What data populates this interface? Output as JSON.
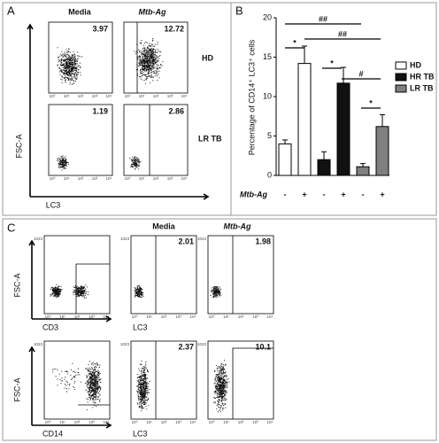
{
  "chart_data": {
    "type": "bar",
    "y_label": "Percentage of CD14⁺ LC3⁺ cells",
    "x_label": "Mtb-Ag",
    "categories": [
      "-",
      "+"
    ],
    "series": [
      {
        "name": "HD",
        "color": "#ffffff",
        "values": [
          4,
          14.2
        ],
        "errors": [
          0.5,
          2.2
        ]
      },
      {
        "name": "HR TB",
        "color": "#111111",
        "values": [
          2,
          11.7
        ],
        "errors": [
          1,
          2
        ]
      },
      {
        "name": "LR TB",
        "color": "#7f7f7f",
        "values": [
          1.1,
          6.2
        ],
        "errors": [
          0.4,
          1.5
        ]
      }
    ],
    "ylim": [
      0,
      20
    ],
    "yticks": [
      0,
      5,
      10,
      15,
      20
    ],
    "annotations": [
      "##",
      "##",
      "*",
      "*",
      "#",
      "*"
    ]
  },
  "panel_labels": [
    "A",
    "B",
    "C"
  ],
  "panel_a": {
    "columns": [
      "Media",
      "Mtb-Ag"
    ],
    "rows": [
      "HD",
      "LR TB"
    ],
    "y_axis": "FSC-A",
    "x_axis": "LC3",
    "percentages": [
      "3.97",
      "12.72",
      "1.19",
      "2.86"
    ]
  },
  "panel_c": {
    "columns": [
      "Media",
      "Mtb-Ag"
    ],
    "y_axis": "FSC-A",
    "x_axes": [
      "CD3",
      "LC3",
      "CD14",
      "LC3"
    ],
    "percentages": [
      "2.01",
      "1.98",
      "2.37",
      "10.1"
    ]
  },
  "flow_ticks": [
    "10⁰",
    "10¹",
    "10²",
    "10³",
    "10⁴"
  ],
  "flow_ymax": "1023"
}
